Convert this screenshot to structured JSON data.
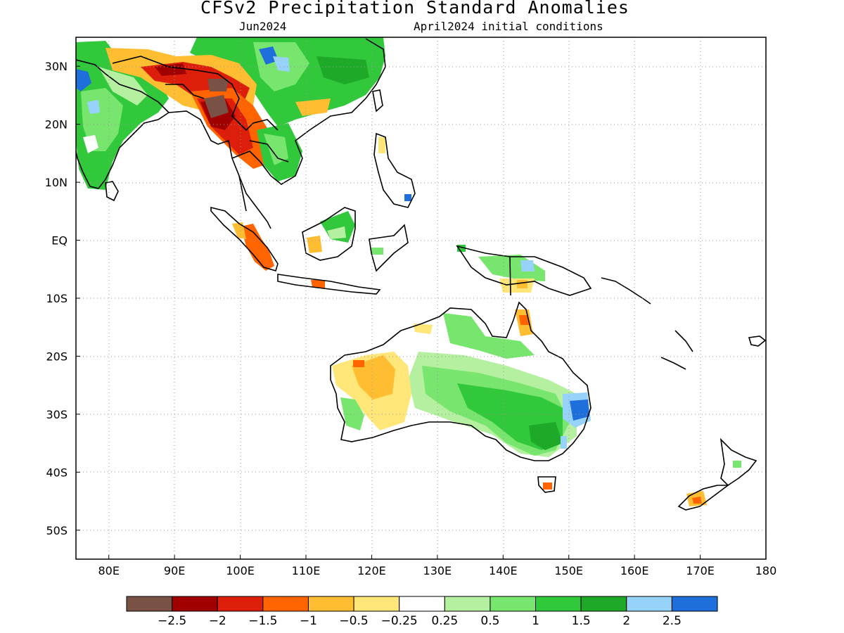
{
  "map": {
    "title": "CFSv2 Precipitation Standard Anomalies",
    "valid_month": "Jun2024",
    "initial_conditions": "April2024 initial conditions",
    "lon_range": [
      75,
      180
    ],
    "lat_range": [
      -55,
      35
    ],
    "lat_ticks": [
      {
        "lat": 30,
        "label": "30N"
      },
      {
        "lat": 20,
        "label": "20N"
      },
      {
        "lat": 10,
        "label": "10N"
      },
      {
        "lat": 0,
        "label": "EQ"
      },
      {
        "lat": -10,
        "label": "10S"
      },
      {
        "lat": -20,
        "label": "20S"
      },
      {
        "lat": -30,
        "label": "30S"
      },
      {
        "lat": -40,
        "label": "40S"
      },
      {
        "lat": -50,
        "label": "50S"
      }
    ],
    "lon_ticks": [
      {
        "lon": 80,
        "label": "80E"
      },
      {
        "lon": 90,
        "label": "90E"
      },
      {
        "lon": 100,
        "label": "100E"
      },
      {
        "lon": 110,
        "label": "110E"
      },
      {
        "lon": 120,
        "label": "120E"
      },
      {
        "lon": 130,
        "label": "130E"
      },
      {
        "lon": 140,
        "label": "140E"
      },
      {
        "lon": 150,
        "label": "150E"
      },
      {
        "lon": 160,
        "label": "160E"
      },
      {
        "lon": 170,
        "label": "170E"
      },
      {
        "lon": 180,
        "label": "180"
      }
    ],
    "grid": true,
    "colorbar": {
      "colors": [
        "#7a5245",
        "#a00000",
        "#dc1e0a",
        "#ff6400",
        "#ffbe32",
        "#ffe678",
        "#ffffff",
        "#b4f0a0",
        "#78e66e",
        "#32c83c",
        "#1eaa28",
        "#96d2fa",
        "#1e6edc"
      ],
      "labels": [
        "−2.5",
        "−2",
        "−1.5",
        "−1",
        "−0.5",
        "−0.25",
        "0.25",
        "0.5",
        "1",
        "1.5",
        "2",
        "2.5"
      ]
    }
  }
}
